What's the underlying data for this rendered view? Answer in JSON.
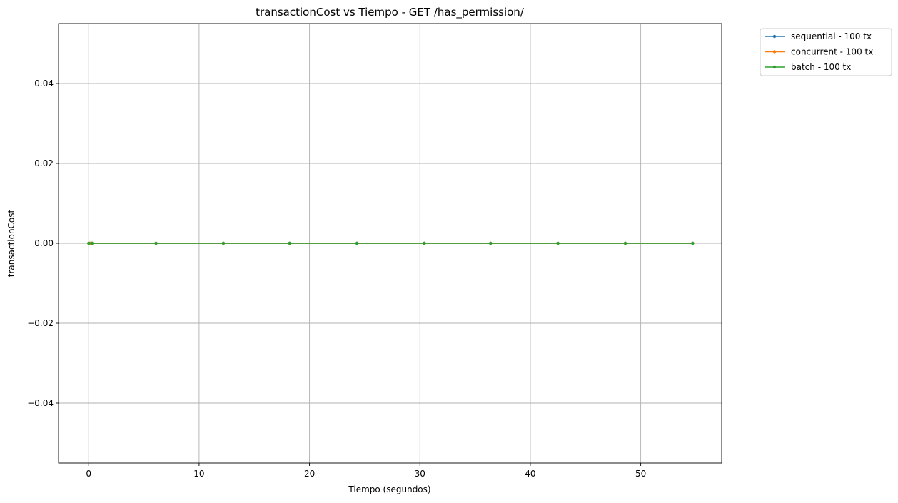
{
  "chart_data": {
    "type": "line",
    "title": "transactionCost vs Tiempo - GET /has_permission/",
    "xlabel": "Tiempo (segundos)",
    "ylabel": "transactionCost",
    "xlim": [
      -2.73,
      57.33
    ],
    "ylim": [
      -0.055,
      0.055
    ],
    "x_ticks": [
      0,
      10,
      20,
      30,
      40,
      50
    ],
    "x_tick_labels": [
      "0",
      "10",
      "20",
      "30",
      "40",
      "50"
    ],
    "y_ticks": [
      -0.04,
      -0.02,
      0.0,
      0.02,
      0.04
    ],
    "y_tick_labels": [
      "−0.04",
      "−0.02",
      "0.00",
      "0.02",
      "0.04"
    ],
    "grid": true,
    "legend_position": "outside-top-right",
    "series": [
      {
        "name": "sequential - 100 tx",
        "color": "#1f77b4",
        "x": [
          0.1,
          0.3,
          6.1,
          12.2,
          18.2,
          24.3,
          30.4,
          36.4,
          42.5,
          48.6,
          54.7
        ],
        "y": [
          0,
          0,
          0,
          0,
          0,
          0,
          0,
          0,
          0,
          0,
          0
        ]
      },
      {
        "name": "concurrent - 100 tx",
        "color": "#ff7f0e",
        "x": [
          0.1,
          0.3,
          6.1,
          12.2,
          18.2,
          24.3,
          30.4,
          36.4,
          42.5,
          48.6,
          54.7
        ],
        "y": [
          0,
          0,
          0,
          0,
          0,
          0,
          0,
          0,
          0,
          0,
          0
        ]
      },
      {
        "name": "batch - 100 tx",
        "color": "#2ca02c",
        "x": [
          0.0,
          0.3,
          6.1,
          12.2,
          18.2,
          24.3,
          30.4,
          36.4,
          42.5,
          48.6,
          54.7
        ],
        "y": [
          0,
          0,
          0,
          0,
          0,
          0,
          0,
          0,
          0,
          0,
          0
        ]
      }
    ]
  }
}
